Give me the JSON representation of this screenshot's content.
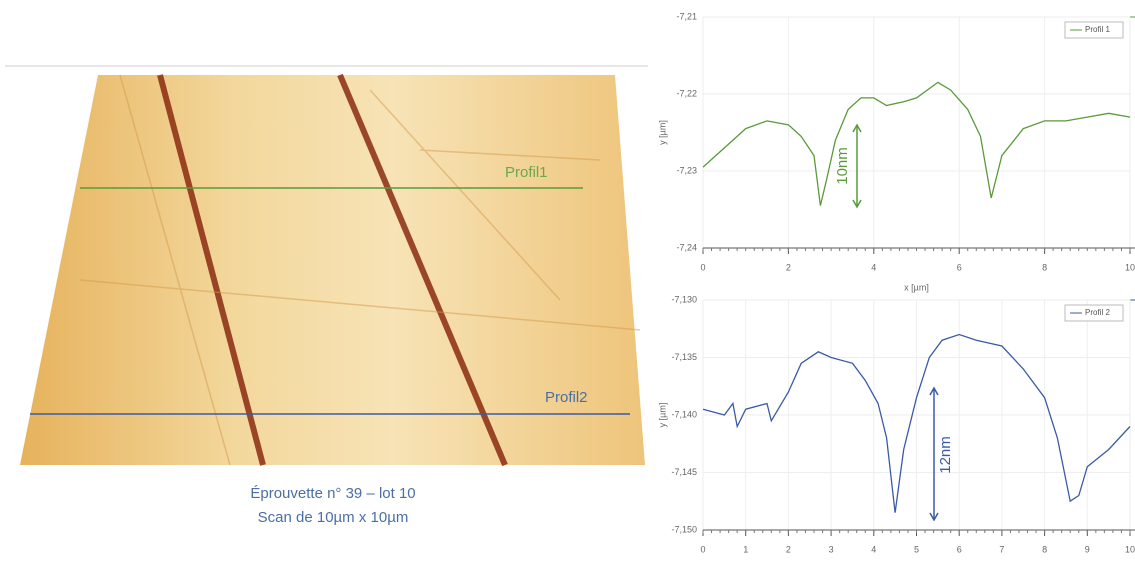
{
  "image": {
    "profile_labels": [
      "Profil1",
      "Profil2"
    ],
    "caption": [
      "Éprouvette n° 39 – lot 10",
      "Scan de 10µm x 10µm"
    ]
  },
  "chart_data": [
    {
      "type": "line",
      "x_label": "x [µm]",
      "y_label": "y [µm]",
      "annotation": "10nm",
      "legend": "top-right",
      "grid": true,
      "xlim": [
        0,
        10
      ],
      "xticks": [
        0,
        2,
        4,
        6,
        8,
        10
      ],
      "ylim": [
        -7.24,
        -7.21
      ],
      "yticks": [
        {
          "value": -7.21,
          "label": "-7,21"
        },
        {
          "value": -7.22,
          "label": "-7,22"
        },
        {
          "value": -7.23,
          "label": "-7,23"
        },
        {
          "value": -7.24,
          "label": "-7,24"
        }
      ],
      "series": [
        {
          "name": "Profil 1",
          "color": "#5a9a3a",
          "x": [
            0,
            0.5,
            1,
            1.5,
            2,
            2.3,
            2.6,
            2.75,
            2.9,
            3.1,
            3.4,
            3.7,
            4,
            4.3,
            4.7,
            5,
            5.5,
            5.8,
            6.2,
            6.5,
            6.75,
            7,
            7.5,
            8,
            8.5,
            9,
            9.5,
            10
          ],
          "values": [
            -7.2295,
            -7.227,
            -7.2245,
            -7.2235,
            -7.224,
            -7.2255,
            -7.228,
            -7.2345,
            -7.231,
            -7.226,
            -7.222,
            -7.2205,
            -7.2205,
            -7.2215,
            -7.221,
            -7.2205,
            -7.2185,
            -7.2195,
            -7.222,
            -7.2255,
            -7.2335,
            -7.228,
            -7.2245,
            -7.2235,
            -7.2235,
            -7.223,
            -7.2225,
            -7.223
          ]
        }
      ]
    },
    {
      "type": "line",
      "y_label": "y [µm]",
      "annotation": "12nm",
      "legend": "top-right",
      "grid": true,
      "xlim": [
        0,
        10
      ],
      "xticks": [
        0,
        1,
        2,
        3,
        4,
        5,
        6,
        7,
        8,
        9,
        10
      ],
      "ylim": [
        -7.15,
        -7.13
      ],
      "yticks": [
        {
          "value": -7.13,
          "label": "-7,130"
        },
        {
          "value": -7.135,
          "label": "-7,135"
        },
        {
          "value": -7.14,
          "label": "-7,140"
        },
        {
          "value": -7.145,
          "label": "-7,145"
        },
        {
          "value": -7.15,
          "label": "-7,150"
        }
      ],
      "series": [
        {
          "name": "Profil 2",
          "color": "#3a5aa8",
          "x": [
            0,
            0.5,
            0.7,
            0.8,
            1,
            1.5,
            1.6,
            2,
            2.3,
            2.7,
            3,
            3.5,
            3.8,
            4.1,
            4.3,
            4.5,
            4.7,
            5,
            5.3,
            5.6,
            6,
            6.4,
            7,
            7.5,
            8,
            8.3,
            8.6,
            8.8,
            9,
            9.5,
            10
          ],
          "values": [
            -7.1395,
            -7.14,
            -7.139,
            -7.141,
            -7.1395,
            -7.139,
            -7.1405,
            -7.138,
            -7.1355,
            -7.1345,
            -7.135,
            -7.1355,
            -7.137,
            -7.139,
            -7.142,
            -7.1485,
            -7.143,
            -7.1385,
            -7.135,
            -7.1335,
            -7.133,
            -7.1335,
            -7.134,
            -7.136,
            -7.1385,
            -7.142,
            -7.1475,
            -7.147,
            -7.1445,
            -7.143,
            -7.141
          ]
        }
      ]
    }
  ]
}
